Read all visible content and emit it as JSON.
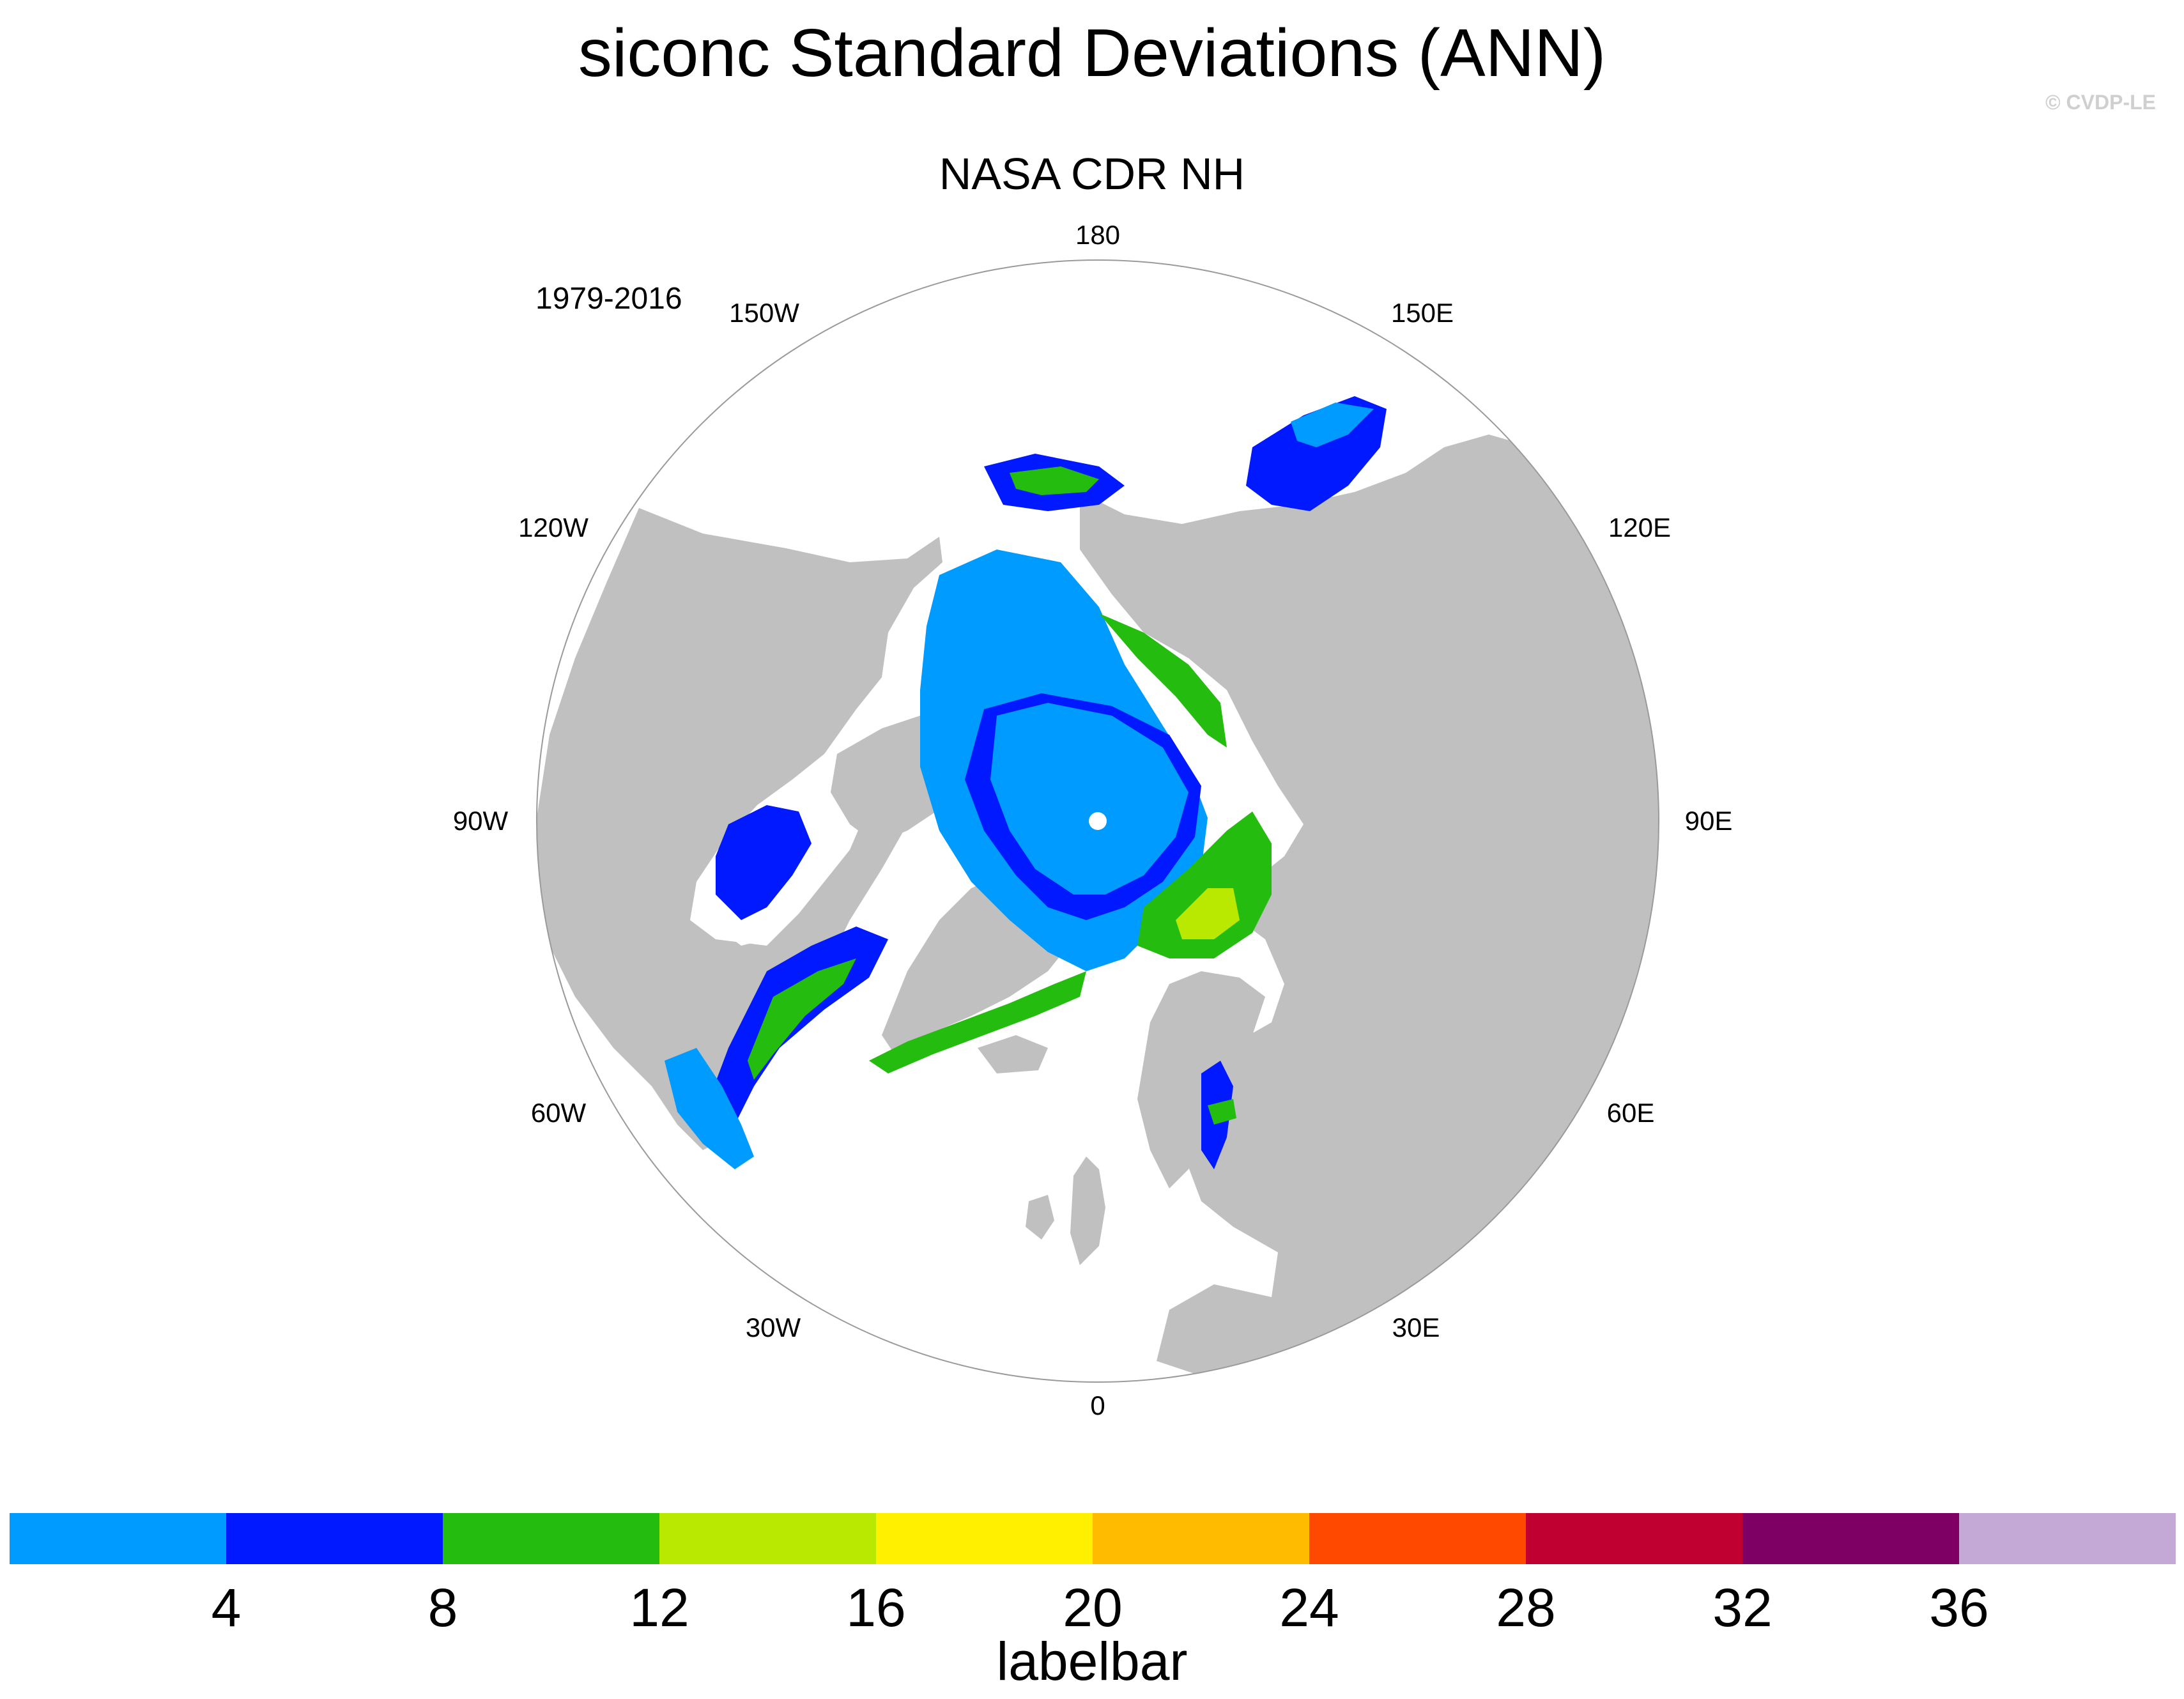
{
  "title": "siconc Standard Deviations (ANN)",
  "watermark": "© CVDP-LE",
  "subtitle": "NASA CDR NH",
  "period": "1979-2016",
  "map": {
    "projection": "polar stereographic (north pole)",
    "land_color": "#c0c0c0",
    "ocean_color": "#ffffff",
    "longitude_labels": [
      "180",
      "150E",
      "120E",
      "90E",
      "60E",
      "30E",
      "0",
      "30W",
      "60W",
      "90W",
      "120W",
      "150W"
    ]
  },
  "colorbar": {
    "colors": [
      "#009bff",
      "#0019ff",
      "#24bc0e",
      "#b9e900",
      "#fff000",
      "#ffbb00",
      "#ff4800",
      "#bf0030",
      "#7f0064",
      "#c4a9d6"
    ],
    "ticks": [
      "4",
      "8",
      "12",
      "16",
      "20",
      "24",
      "28",
      "32",
      "36"
    ],
    "label": "labelbar"
  }
}
